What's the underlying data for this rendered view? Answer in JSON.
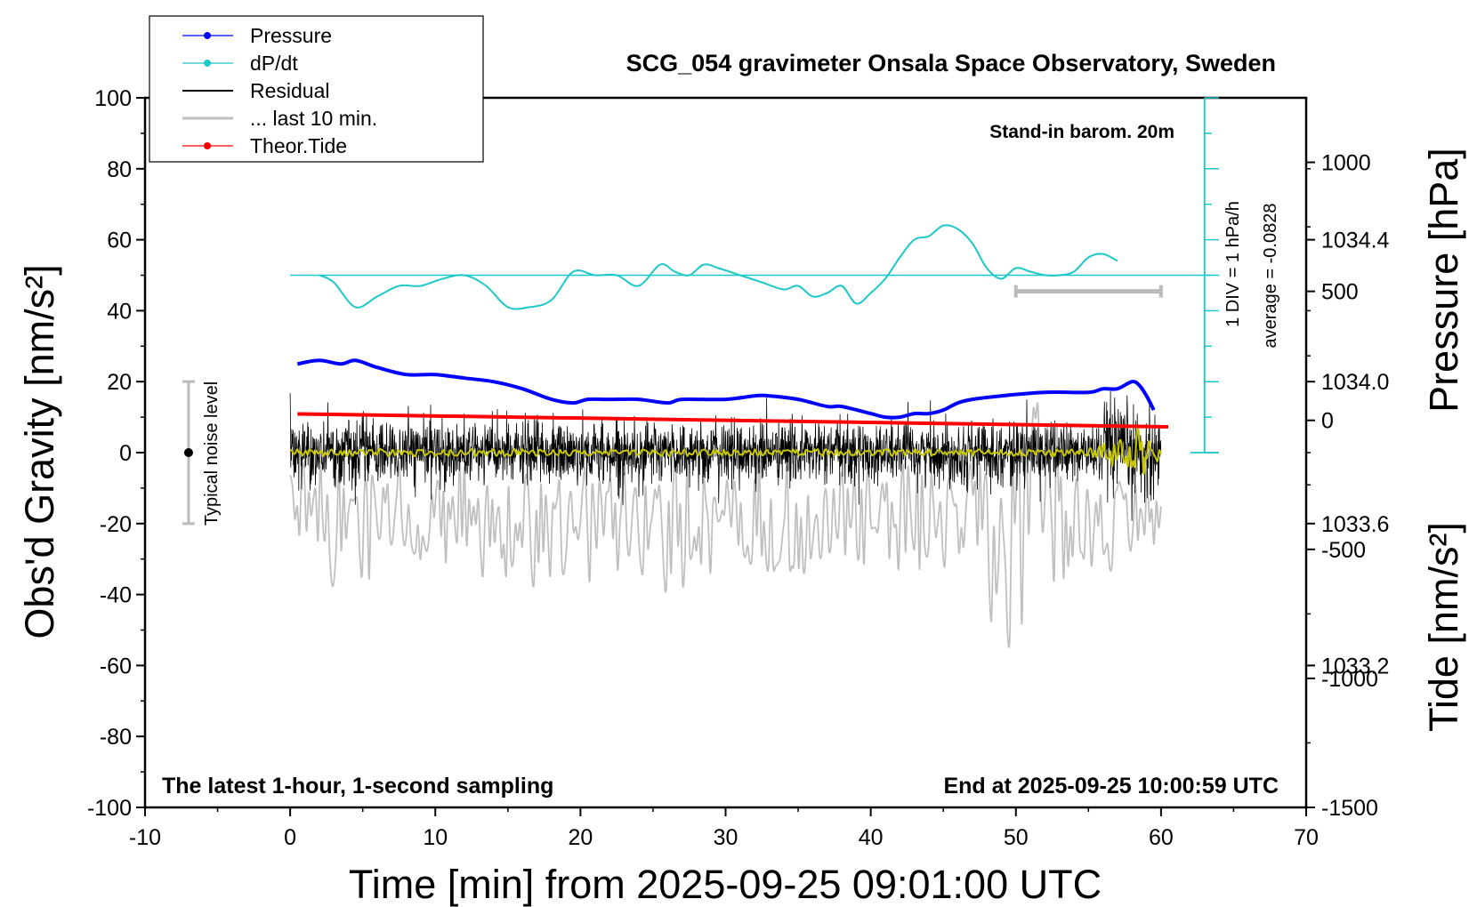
{
  "chart_data": {
    "type": "line",
    "title": "SCG_054 gravimeter Onsala Space Observatory, Sweden",
    "xlabel": "Time [min] from 2025-09-25 09:01:00 UTC",
    "ylabel_left": "Obs'd Gravity [nm/s²]",
    "ylabel_right_top": "Pressure [hPa]",
    "ylabel_right_bottom": "Tide [nm/s²]",
    "xlim": [
      -10,
      70
    ],
    "ylim": [
      -100,
      100
    ],
    "pressure_ylim": [
      1032.8,
      1034.8
    ],
    "tide_ylim": [
      -1500,
      1250
    ],
    "x_ticks": [
      "-10",
      "0",
      "10",
      "20",
      "30",
      "40",
      "50",
      "60",
      "70"
    ],
    "y_ticks": [
      "100",
      "80",
      "60",
      "40",
      "20",
      "0",
      "-20",
      "-40",
      "-60",
      "-80",
      "-100"
    ],
    "pressure_ticks": [
      "1034.4",
      "1034.0",
      "1033.6",
      "1033.2"
    ],
    "tide_ticks": [
      "1000",
      "500",
      "0",
      "-500",
      "-1000",
      "-1500"
    ],
    "grid": false,
    "legend": {
      "placement": "top-left",
      "entries": [
        {
          "label": "Pressure",
          "color": "#0000ff",
          "style": "line-dot"
        },
        {
          "label": "dP/dt",
          "color": "#1ec8c8",
          "style": "line-dot"
        },
        {
          "label": "Residual",
          "color": "#000000",
          "style": "line"
        },
        {
          "label": "... last 10 min.",
          "color": "#c0c0c0",
          "style": "line"
        },
        {
          "label": "Theor.Tide",
          "color": "#ff0000",
          "style": "line-dot"
        }
      ]
    },
    "annotations": {
      "barometer_note": "Stand-in barom. 20m",
      "div_note": "1 DIV = 1 hPa/h",
      "average_note": "average = -0.0828",
      "noise_note": "Typical noise level",
      "bottom_left_note": "The latest 1-hour, 1-second sampling",
      "bottom_right_note": "End at 2025-09-25 10:00:59 UTC"
    },
    "noise_bar": {
      "x": -7,
      "y_center": 0,
      "y_range": [
        -20,
        20
      ]
    },
    "last10_bar": {
      "x_range": [
        50,
        60
      ],
      "tide_value": 500
    },
    "dpdt_baseline_gravity": 50,
    "series": [
      {
        "name": "Pressure",
        "unit": "hPa",
        "color": "#0000ff",
        "x": [
          0.5,
          2,
          3.5,
          4.5,
          6,
          8,
          10,
          12,
          14,
          16,
          18,
          19.5,
          20.5,
          22,
          24,
          26,
          27,
          30,
          32,
          33,
          35,
          37,
          38,
          40,
          41,
          42,
          43,
          44,
          45,
          46,
          47,
          49,
          52,
          55,
          56,
          57,
          58,
          58.5,
          59,
          59.5
        ],
        "values": [
          1034.05,
          1034.06,
          1034.05,
          1034.06,
          1034.04,
          1034.02,
          1034.02,
          1034.01,
          1034.0,
          1033.98,
          1033.95,
          1033.94,
          1033.95,
          1033.95,
          1033.95,
          1033.94,
          1033.95,
          1033.95,
          1033.96,
          1033.96,
          1033.95,
          1033.93,
          1033.93,
          1033.91,
          1033.9,
          1033.9,
          1033.91,
          1033.91,
          1033.92,
          1033.94,
          1033.95,
          1033.96,
          1033.97,
          1033.97,
          1033.98,
          1033.98,
          1034.0,
          1033.99,
          1033.96,
          1033.92
        ]
      },
      {
        "name": "dP/dt",
        "unit": "gravity-axis (1 DIV = 1 hPa/h, baseline 50)",
        "color": "#1ec8c8",
        "x": [
          2,
          3,
          4.5,
          6,
          7.5,
          9,
          10.5,
          12,
          13.5,
          15,
          16.5,
          18,
          19.5,
          21,
          22.5,
          24,
          25.5,
          26.5,
          27.5,
          28.5,
          29.5,
          31,
          32.5,
          34,
          35,
          36,
          37,
          38,
          39,
          40,
          41,
          42,
          43,
          44,
          45,
          46,
          47,
          48,
          49,
          50,
          51,
          52,
          53,
          54,
          55,
          56,
          57
        ],
        "values": [
          50,
          48,
          41,
          44,
          47,
          47,
          49,
          50,
          47,
          41,
          41,
          43,
          51,
          50,
          50,
          47,
          53,
          51,
          50,
          53,
          52,
          50,
          48,
          46,
          47,
          44,
          45,
          47,
          42,
          45,
          49,
          55,
          60,
          61,
          64,
          63,
          59,
          52,
          49,
          52,
          51,
          50,
          50,
          51,
          55,
          56,
          54
        ]
      },
      {
        "name": "Residual",
        "unit": "nm/s²",
        "color": "#000000",
        "description_values": {
          "x_range": [
            0,
            60
          ],
          "typical_amplitude": 8,
          "peak_amplitude": 20,
          "spike_max": 20,
          "spike_min": -20
        }
      },
      {
        "name": "Residual smoothed",
        "unit": "nm/s²",
        "color": "#c8c800",
        "description_values": {
          "x_range": [
            0,
            60
          ],
          "typical_amplitude": 1,
          "end_amplitude": 8
        }
      },
      {
        "name": "... last 10 min.",
        "unit": "nm/s² (tide axis)",
        "color": "#c0c0c0",
        "description_values": {
          "x_range": [
            0,
            60
          ],
          "center": -400,
          "typical_amplitude": 250,
          "peak_amplitude": 500
        }
      },
      {
        "name": "Theor.Tide",
        "unit": "nm/s²",
        "color": "#ff0000",
        "x": [
          0.5,
          60.5
        ],
        "values": [
          25,
          -25
        ]
      }
    ]
  }
}
